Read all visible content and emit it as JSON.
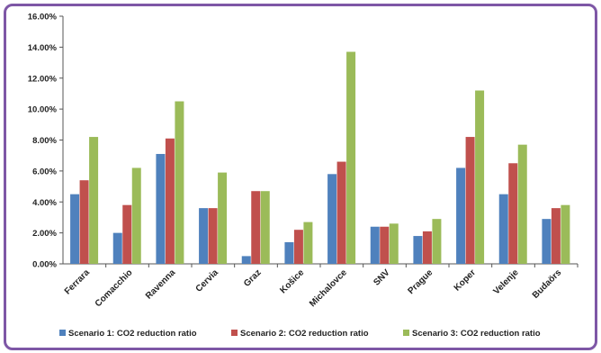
{
  "chart_data": {
    "type": "bar",
    "categories": [
      "Ferrara",
      "Comacchio",
      "Ravenna",
      "Cervia",
      "Graz",
      "Košice",
      "Michalovce",
      "SNV",
      "Prague",
      "Koper",
      "Velenje",
      "Budaörs"
    ],
    "series": [
      {
        "name": "Scenario 1: CO2 reduction ratio",
        "color": "#4f81bd",
        "values": [
          4.5,
          2.0,
          7.1,
          3.6,
          0.5,
          1.4,
          5.8,
          2.4,
          1.8,
          6.2,
          4.5,
          2.9
        ]
      },
      {
        "name": "Scenario 2: CO2 reduction ratio",
        "color": "#c0504d",
        "values": [
          5.4,
          3.8,
          8.1,
          3.6,
          4.7,
          2.2,
          6.6,
          2.4,
          2.1,
          8.2,
          6.5,
          3.6
        ]
      },
      {
        "name": "Scenario 3: CO2 reduction ratio",
        "color": "#9bbb59",
        "values": [
          8.2,
          6.2,
          10.5,
          5.9,
          4.7,
          2.7,
          13.7,
          2.6,
          2.9,
          11.2,
          7.7,
          3.8
        ]
      }
    ],
    "yticks": [
      "0.00%",
      "2.00%",
      "4.00%",
      "6.00%",
      "8.00%",
      "10.00%",
      "12.00%",
      "14.00%",
      "16.00%"
    ],
    "ylim": [
      0,
      16
    ],
    "grid": false,
    "legend": "bottom",
    "title": "",
    "xlabel": "",
    "ylabel": ""
  }
}
